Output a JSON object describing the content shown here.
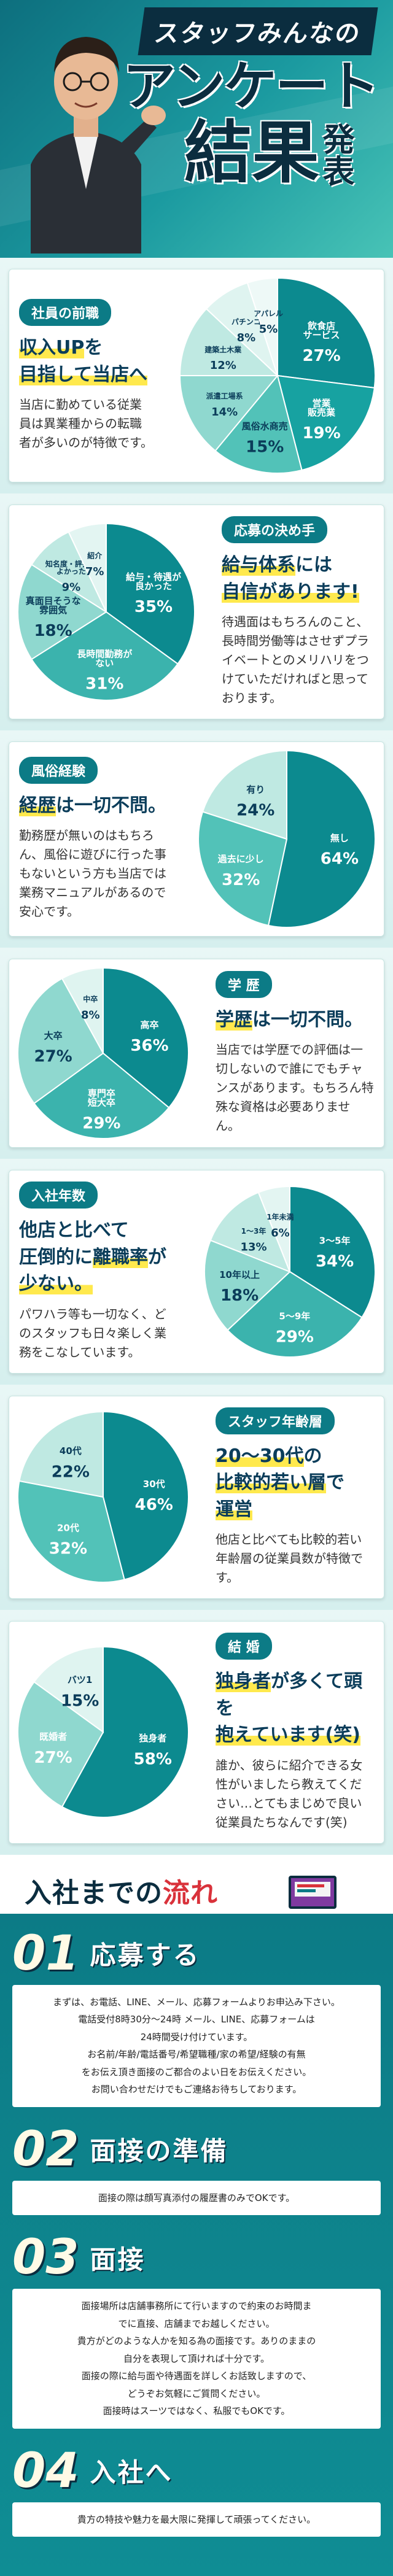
{
  "hero": {
    "line1": "スタッフみんなの",
    "line2": "アンケート",
    "line3": "結果",
    "line4": "発表"
  },
  "sections": {
    "s1": {
      "tag": "社員の前職",
      "headline_a": "収入UP",
      "headline_b": "を",
      "headline_c": "目指して当店へ",
      "body": "当店に勤めている従業員は異業種からの転職者が多いのが特徴です。"
    },
    "s2": {
      "tag": "応募の決め手",
      "headline_a": "給与体系",
      "headline_b": "には",
      "headline_c": "自信があります!",
      "body": "待遇面はもちろんのこと、長時間労働等はさせずプライベートとのメリハリをつけていただければと思っております。"
    },
    "s3": {
      "tag": "風俗経験",
      "headline_a": "経歴",
      "headline_b": "は一切不問。",
      "body": "勤務歴が無いのはもちろん、風俗に遊びに行った事もないという方も当店では業務マニュアルがあるので安心です。"
    },
    "s4": {
      "tag": "学 歴",
      "headline_a": "学歴",
      "headline_b": "は一切不問。",
      "body": "当店では学歴での評価は一切しないので誰にでもチャンスがあります。もちろん特殊な資格は必要ありません。"
    },
    "s5": {
      "tag": "入社年数",
      "headline_a": "他店と比べて",
      "headline_b": "圧倒的に",
      "headline_c": "離職率",
      "headline_d": "が",
      "headline_e": "少ない。",
      "body": "パワハラ等も一切なく、どのスタッフも日々楽しく業務をこなしています。"
    },
    "s6": {
      "tag": "スタッフ年齢層",
      "headline_a": "20～30代",
      "headline_b": "の",
      "headline_c": "比較的若い層",
      "headline_d": "で",
      "headline_e": "運営",
      "body": "他店と比べても比較的若い年齢層の従業員数が特徴です。"
    },
    "s7": {
      "tag": "結 婚",
      "headline_a": "独身者",
      "headline_b": "が多くて頭を",
      "headline_c": "抱えています(笑)",
      "body": "誰か、彼らに紹介できる女性がいましたら教えてください…とてもまじめで良い従業員たちなんです(笑)"
    }
  },
  "flow": {
    "title_a": "入社までの",
    "title_b": "流れ",
    "steps": [
      {
        "num": "01",
        "label": "応募する",
        "lines": [
          "まずは、お電話、LINE、メール、応募フォームよりお申込み下さい。",
          "電話受付8時30分～24時 メール、LINE、応募フォームは",
          "24時間受け付けています。",
          "お名前/年齢/電話番号/希望職種/家の希望/経験の有無",
          "をお伝え頂き面接のご都合のよい日をお伝えください。",
          "お問い合わせだけでもご連絡お待ちしております。"
        ]
      },
      {
        "num": "02",
        "label": "面接の準備",
        "lines": [
          "面接の際は顔写真添付の履歴書のみでOKです。"
        ]
      },
      {
        "num": "03",
        "label": "面接",
        "lines": [
          "面接場所は店舗事務所にて行いますので約束のお時間ま",
          "でに直接、店舗までお越しください。",
          "貴方がどのような人かを知る為の面接です。ありのままの",
          "自分を表現して頂ければ十分です。",
          "面接の際に給与面や待遇面を詳しくお話致しますので、",
          "どうぞお気軽にご質問ください。",
          "面接時はスーツではなく、私服でもOKです。"
        ]
      },
      {
        "num": "04",
        "label": "入社へ",
        "lines": [
          "貴方の特技や魅力を最大限に発揮して頑張ってください。"
        ]
      }
    ]
  },
  "chart_data": [
    {
      "type": "pie",
      "title": "社員の前職",
      "categories": [
        "飲食店サービス",
        "営業販売業",
        "風俗水商売",
        "派遣工場系",
        "建築土木業",
        "パチンコ",
        "アパレル"
      ],
      "values": [
        27,
        19,
        15,
        14,
        12,
        8,
        5
      ],
      "labels": [
        "飲食店\nサービス",
        "営業\n販売業",
        "風俗水商売",
        "派遣工場系",
        "建築土木業",
        "パチンコ",
        "アパレル"
      ],
      "colors": [
        "#0c8a8f",
        "#17a2a1",
        "#52c2b8",
        "#8fd8cf",
        "#bfe9e2",
        "#dff4f0",
        "#eef9f7"
      ]
    },
    {
      "type": "pie",
      "title": "応募の決め手",
      "categories": [
        "給与・待遇が良かった",
        "長時間勤務がない",
        "真面目そうな雰囲気",
        "知名度・評判がよかった",
        "紹介"
      ],
      "values": [
        35,
        31,
        18,
        9,
        7
      ],
      "labels": [
        "給与・待遇が\n良かった",
        "長時間勤務が\nない",
        "真面目そうな\n雰囲気",
        "知名度・評判が\nよかった",
        "紹介"
      ],
      "colors": [
        "#0c8a8f",
        "#3bb3ad",
        "#8fd8cf",
        "#bfe9e2",
        "#e3f5f2"
      ]
    },
    {
      "type": "pie",
      "title": "風俗経験",
      "categories": [
        "無し",
        "過去に少し",
        "有り"
      ],
      "values": [
        64,
        32,
        24
      ],
      "labels": [
        "無し",
        "過去に少し",
        "有り"
      ],
      "colors": [
        "#0c8a8f",
        "#52c2b8",
        "#bfe9e2"
      ]
    },
    {
      "type": "pie",
      "title": "学歴",
      "categories": [
        "高卒",
        "専門卒短大卒",
        "大卒",
        "中卒"
      ],
      "values": [
        36,
        29,
        27,
        8
      ],
      "labels": [
        "高卒",
        "専門卒\n短大卒",
        "大卒",
        "中卒"
      ],
      "colors": [
        "#0c8a8f",
        "#3bb3ad",
        "#8fd8cf",
        "#dff4f0"
      ]
    },
    {
      "type": "pie",
      "title": "入社年数",
      "categories": [
        "3～5年",
        "5～9年",
        "10年以上",
        "1～3年",
        "1年未満"
      ],
      "values": [
        34,
        29,
        18,
        13,
        6
      ],
      "labels": [
        "3～5年",
        "5～9年",
        "10年以上",
        "1～3年",
        "1年未満"
      ],
      "colors": [
        "#0c8a8f",
        "#3bb3ad",
        "#8fd8cf",
        "#bfe9e2",
        "#e3f5f2"
      ]
    },
    {
      "type": "pie",
      "title": "スタッフ年齢層",
      "categories": [
        "30代",
        "20代",
        "40代"
      ],
      "values": [
        46,
        32,
        22
      ],
      "labels": [
        "30代",
        "20代",
        "40代"
      ],
      "colors": [
        "#0c8a8f",
        "#52c2b8",
        "#bfe9e2"
      ]
    },
    {
      "type": "pie",
      "title": "結婚",
      "categories": [
        "独身者",
        "既婚者",
        "バツ1"
      ],
      "values": [
        58,
        27,
        15
      ],
      "labels": [
        "独身者",
        "既婚者",
        "バツ1"
      ],
      "colors": [
        "#0c8a8f",
        "#8fd8cf",
        "#dff4f0"
      ]
    }
  ]
}
